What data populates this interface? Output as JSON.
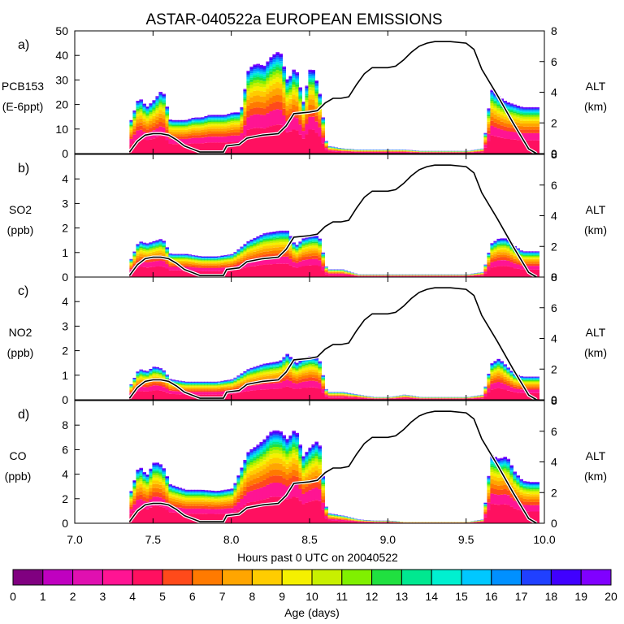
{
  "colors": {
    "palette": [
      "#800080",
      "#c000c0",
      "#e010b0",
      "#ff1493",
      "#ff1060",
      "#ff4a1a",
      "#ff7a00",
      "#ffa500",
      "#ffcc00",
      "#f5f000",
      "#c8f000",
      "#80f000",
      "#20e040",
      "#00e890",
      "#00f0d0",
      "#00c8ff",
      "#0090ff",
      "#2040ff",
      "#4000ff",
      "#8000ff"
    ],
    "altitude_line": "#000000",
    "altitude_halo": "#ffffff"
  },
  "chart_data": {
    "type": "area",
    "title": "ASTAR-040522a EUROPEAN EMISSIONS",
    "xlabel": "Hours past 0 UTC on 20040522",
    "xlim": [
      7.0,
      10.0
    ],
    "xticks": [
      "7.0",
      "7.5",
      "8.0",
      "8.5",
      "9.0",
      "9.5",
      "10.0"
    ],
    "colorbar": {
      "label": "Age (days)",
      "ticks": [
        "0",
        "1",
        "2",
        "3",
        "4",
        "5",
        "6",
        "7",
        "8",
        "9",
        "10",
        "11",
        "12",
        "13",
        "14",
        "15",
        "16",
        "17",
        "18",
        "19",
        "20"
      ]
    },
    "altitude": {
      "ylabel": "ALT",
      "units": "(km)",
      "ylim": [
        0,
        8
      ],
      "ticks": [
        "0",
        "2",
        "4",
        "6",
        "8"
      ],
      "x": [
        7.35,
        7.4,
        7.45,
        7.5,
        7.55,
        7.6,
        7.65,
        7.7,
        7.8,
        7.95,
        7.97,
        8.05,
        8.1,
        8.2,
        8.3,
        8.35,
        8.4,
        8.5,
        8.55,
        8.6,
        8.65,
        8.7,
        8.75,
        8.8,
        8.85,
        8.9,
        9.0,
        9.05,
        9.1,
        9.15,
        9.2,
        9.25,
        9.3,
        9.35,
        9.4,
        9.5,
        9.55,
        9.6,
        9.7,
        9.8,
        9.9,
        9.95
      ],
      "values": [
        0.1,
        0.8,
        1.2,
        1.3,
        1.3,
        1.2,
        0.9,
        0.5,
        0.1,
        0.1,
        0.5,
        0.6,
        1.0,
        1.2,
        1.3,
        1.8,
        2.6,
        2.7,
        2.8,
        3.3,
        3.6,
        3.6,
        3.7,
        4.5,
        5.2,
        5.6,
        5.6,
        5.7,
        6.1,
        6.6,
        7.0,
        7.2,
        7.3,
        7.3,
        7.3,
        7.2,
        6.8,
        5.5,
        3.8,
        2.0,
        0.3,
        0.0
      ]
    },
    "panels": [
      {
        "letter": "a)",
        "ylabel": "PCB153",
        "units": "(E-6ppt)",
        "ylim": [
          0,
          50
        ],
        "yticks": [
          "0",
          "10",
          "20",
          "30",
          "40",
          "50"
        ],
        "x": [
          7.35,
          7.4,
          7.45,
          7.5,
          7.55,
          7.6,
          7.65,
          7.7,
          7.75,
          7.8,
          7.85,
          7.9,
          7.95,
          8.0,
          8.05,
          8.1,
          8.15,
          8.2,
          8.25,
          8.3,
          8.35,
          8.4,
          8.45,
          8.5,
          8.55,
          8.6,
          8.7,
          8.8,
          8.9,
          9.0,
          9.1,
          9.2,
          9.3,
          9.4,
          9.5,
          9.6,
          9.65,
          9.7,
          9.75,
          9.8,
          9.85,
          9.9,
          9.95
        ],
        "values": [
          13,
          22,
          18,
          21,
          25,
          13,
          13,
          13,
          14,
          14,
          15,
          15,
          15,
          16,
          16,
          33,
          35,
          34,
          38,
          40,
          28,
          34,
          20,
          35,
          25,
          3,
          2,
          1.5,
          1.5,
          1.5,
          1.5,
          1,
          1,
          1,
          1,
          2,
          25,
          22,
          20,
          19,
          18,
          18,
          18
        ]
      },
      {
        "letter": "b)",
        "ylabel": "SO2",
        "units": "(ppb)",
        "ylim": [
          0,
          5
        ],
        "yticks": [
          "0",
          "1",
          "2",
          "3",
          "4"
        ],
        "x": [
          7.35,
          7.4,
          7.45,
          7.5,
          7.55,
          7.6,
          7.7,
          7.8,
          7.9,
          8.0,
          8.1,
          8.2,
          8.3,
          8.35,
          8.4,
          8.45,
          8.5,
          8.55,
          8.6,
          8.7,
          8.8,
          8.9,
          9.0,
          9.1,
          9.2,
          9.3,
          9.4,
          9.5,
          9.6,
          9.65,
          9.7,
          9.75,
          9.8,
          9.85,
          9.9,
          9.95
        ],
        "values": [
          0.7,
          1.4,
          1.3,
          1.4,
          1.5,
          0.9,
          0.9,
          0.8,
          0.8,
          0.9,
          1.4,
          1.7,
          1.8,
          1.8,
          1.2,
          1.5,
          1.6,
          1.6,
          0.3,
          0.3,
          0.1,
          0.1,
          0.1,
          0.1,
          0.1,
          0.1,
          0.1,
          0.1,
          0.2,
          1.3,
          1.5,
          1.5,
          1.2,
          1.0,
          1.0,
          1.0
        ]
      },
      {
        "letter": "c)",
        "ylabel": "NO2",
        "units": "(ppb)",
        "ylim": [
          0,
          5
        ],
        "yticks": [
          "0",
          "1",
          "2",
          "3",
          "4"
        ],
        "x": [
          7.35,
          7.4,
          7.45,
          7.5,
          7.55,
          7.6,
          7.7,
          7.8,
          7.9,
          8.0,
          8.1,
          8.2,
          8.3,
          8.35,
          8.4,
          8.45,
          8.5,
          8.55,
          8.6,
          8.7,
          8.8,
          8.9,
          9.0,
          9.1,
          9.2,
          9.3,
          9.4,
          9.5,
          9.6,
          9.65,
          9.7,
          9.75,
          9.8,
          9.85,
          9.9,
          9.95
        ],
        "values": [
          0.6,
          1.2,
          1.1,
          1.3,
          1.2,
          0.8,
          0.7,
          0.7,
          0.7,
          0.8,
          1.2,
          1.4,
          1.5,
          1.8,
          1.4,
          1.6,
          1.7,
          1.6,
          0.3,
          0.3,
          0.2,
          0.1,
          0.1,
          0.2,
          0.1,
          0.1,
          0.1,
          0.1,
          0.2,
          1.4,
          1.6,
          1.3,
          1.0,
          0.9,
          0.9,
          0.9
        ]
      },
      {
        "letter": "d)",
        "ylabel": "CO",
        "units": "(ppb)",
        "ylim": [
          0,
          10
        ],
        "yticks": [
          "0",
          "2",
          "4",
          "6",
          "8"
        ],
        "x": [
          7.35,
          7.4,
          7.45,
          7.5,
          7.55,
          7.6,
          7.7,
          7.8,
          7.9,
          8.0,
          8.1,
          8.15,
          8.2,
          8.25,
          8.3,
          8.35,
          8.4,
          8.45,
          8.5,
          8.55,
          8.6,
          8.7,
          8.8,
          8.9,
          9.0,
          9.1,
          9.2,
          9.3,
          9.4,
          9.5,
          9.6,
          9.65,
          9.7,
          9.75,
          9.8,
          9.85,
          9.9,
          9.95
        ],
        "values": [
          2.5,
          4.5,
          3.7,
          4.8,
          4.5,
          3.0,
          2.6,
          2.6,
          2.5,
          2.7,
          5.6,
          6.0,
          6.5,
          7.2,
          7.2,
          6.5,
          7.4,
          5.2,
          6.0,
          6.5,
          0.8,
          0.6,
          0.3,
          0.2,
          0.2,
          0.1,
          0.1,
          0.1,
          0.1,
          0.1,
          0.3,
          5.3,
          5.0,
          5.2,
          4.0,
          3.3,
          3.2,
          3.2
        ]
      }
    ]
  }
}
